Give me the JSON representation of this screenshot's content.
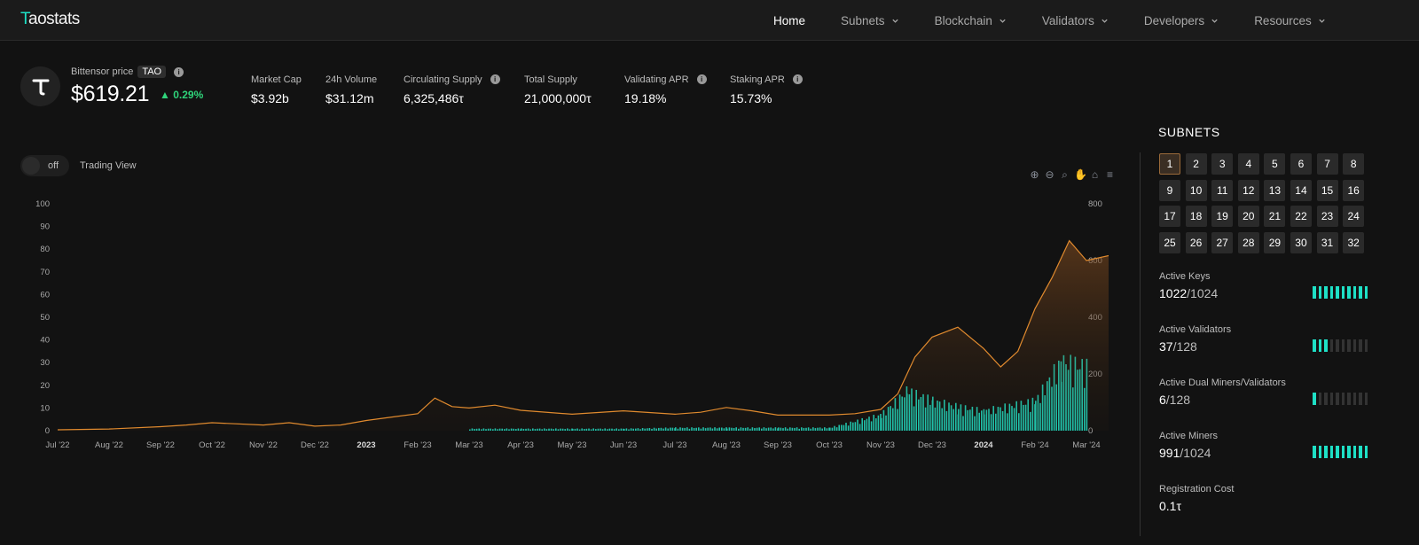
{
  "app": {
    "logo_t": "T",
    "logo_rest": "aostats"
  },
  "nav": [
    {
      "label": "Home",
      "dropdown": false,
      "active": true
    },
    {
      "label": "Subnets",
      "dropdown": true
    },
    {
      "label": "Blockchain",
      "dropdown": true
    },
    {
      "label": "Validators",
      "dropdown": true
    },
    {
      "label": "Developers",
      "dropdown": true
    },
    {
      "label": "Resources",
      "dropdown": true
    }
  ],
  "header": {
    "price_label": "Bittensor price",
    "ticker": "TAO",
    "price": "$619.21",
    "change": "▲ 0.29%",
    "stats": [
      {
        "label": "Market Cap",
        "value": "$3.92b",
        "info": false
      },
      {
        "label": "24h Volume",
        "value": "$31.12m",
        "info": false
      },
      {
        "label": "Circulating Supply",
        "value": "6,325,486τ",
        "info": true
      },
      {
        "label": "Total Supply",
        "value": "21,000,000τ",
        "info": false
      },
      {
        "label": "Validating APR",
        "value": "19.18%",
        "info": true
      },
      {
        "label": "Staking APR",
        "value": "15.73%",
        "info": true
      }
    ]
  },
  "controls": {
    "toggle_state": "off",
    "trading_view_label": "Trading View"
  },
  "colors": {
    "accent": "#1ee0c6",
    "price_line": "#e08a2e",
    "positive": "#2fd37a"
  },
  "chart_data": {
    "type": "line",
    "x_tick_labels": [
      "Jul '22",
      "Aug '22",
      "Sep '22",
      "Oct '22",
      "Nov '22",
      "Dec '22",
      "2023",
      "Feb '23",
      "Mar '23",
      "Apr '23",
      "May '23",
      "Jun '23",
      "Jul '23",
      "Aug '23",
      "Sep '23",
      "Oct '23",
      "Nov '23",
      "Dec '23",
      "2024",
      "Feb '24",
      "Mar '24"
    ],
    "left_axis_ticks": [
      0,
      10,
      20,
      30,
      40,
      50,
      60,
      70,
      80,
      90,
      100
    ],
    "right_axis_ticks": [
      0,
      200,
      400,
      600,
      800
    ],
    "series": [
      {
        "type": "area",
        "axis": "right",
        "color": "#e08a2e",
        "points": [
          [
            "Jul '22",
            3
          ],
          [
            "Aug '22",
            6
          ],
          [
            "Sep '22",
            14
          ],
          [
            "Sep '22",
            20
          ],
          [
            "Oct '22",
            28
          ],
          [
            "Nov '22",
            20
          ],
          [
            "Nov '22",
            28
          ],
          [
            "Dec '22",
            16
          ],
          [
            "Dec '22",
            20
          ],
          [
            "2023",
            36
          ],
          [
            "2023",
            48
          ],
          [
            "Feb '23",
            60
          ],
          [
            "Feb '23",
            115
          ],
          [
            "Feb '23",
            85
          ],
          [
            "Mar '23",
            80
          ],
          [
            "Mar '23",
            90
          ],
          [
            "Apr '23",
            72
          ],
          [
            "May '23",
            58
          ],
          [
            "Jun '23",
            70
          ],
          [
            "Jul '23",
            58
          ],
          [
            "Jul '23",
            65
          ],
          [
            "Aug '23",
            82
          ],
          [
            "Aug '23",
            70
          ],
          [
            "Sep '23",
            55
          ],
          [
            "Oct '23",
            55
          ],
          [
            "Oct '23",
            60
          ],
          [
            "Nov '23",
            75
          ],
          [
            "Nov '23",
            130
          ],
          [
            "Nov '23",
            260
          ],
          [
            "Dec '23",
            330
          ],
          [
            "Dec '23",
            365
          ],
          [
            "2024",
            290
          ],
          [
            "2024",
            225
          ],
          [
            "2024",
            280
          ],
          [
            "Feb '24",
            430
          ],
          [
            "Feb '24",
            540
          ],
          [
            "Feb '24",
            670
          ],
          [
            "Mar '24",
            600
          ],
          [
            "Mar '24",
            620
          ]
        ]
      },
      {
        "type": "bar",
        "axis": "left",
        "color": "#1ee0c6",
        "note": "daily volume bars; values approximate, from Mar '23 to Mar '24",
        "points": [
          [
            "Mar '23",
            1
          ],
          [
            "Apr '23",
            1
          ],
          [
            "May '23",
            1
          ],
          [
            "Jun '23",
            1
          ],
          [
            "Jul '23",
            1.5
          ],
          [
            "Aug '23",
            1.5
          ],
          [
            "Sep '23",
            1.5
          ],
          [
            "Oct '23",
            1.5
          ],
          [
            "Nov '23",
            8
          ],
          [
            "Nov '23",
            20
          ],
          [
            "Dec '23",
            15
          ],
          [
            "Dec '23",
            12
          ],
          [
            "2024",
            10
          ],
          [
            "Feb '24",
            15
          ],
          [
            "Feb '24",
            35
          ],
          [
            "Mar '24",
            32
          ]
        ]
      }
    ]
  },
  "subnets": {
    "title": "SUBNETS",
    "ids": [
      1,
      2,
      3,
      4,
      5,
      6,
      7,
      8,
      9,
      10,
      11,
      12,
      13,
      14,
      15,
      16,
      17,
      18,
      19,
      20,
      21,
      22,
      23,
      24,
      25,
      26,
      27,
      28,
      29,
      30,
      31,
      32
    ],
    "selected": 1
  },
  "metrics": [
    {
      "label": "Active Keys",
      "value": "1022",
      "total": "/1024",
      "fill": 1.0
    },
    {
      "label": "Active Validators",
      "value": "37",
      "total": "/128",
      "fill": 0.29
    },
    {
      "label": "Active Dual Miners/Validators",
      "value": "6",
      "total": "/128",
      "fill": 0.05
    },
    {
      "label": "Active Miners",
      "value": "991",
      "total": "/1024",
      "fill": 0.97
    },
    {
      "label": "Registration Cost",
      "value": "0.1τ",
      "total": "",
      "fill": null
    }
  ]
}
